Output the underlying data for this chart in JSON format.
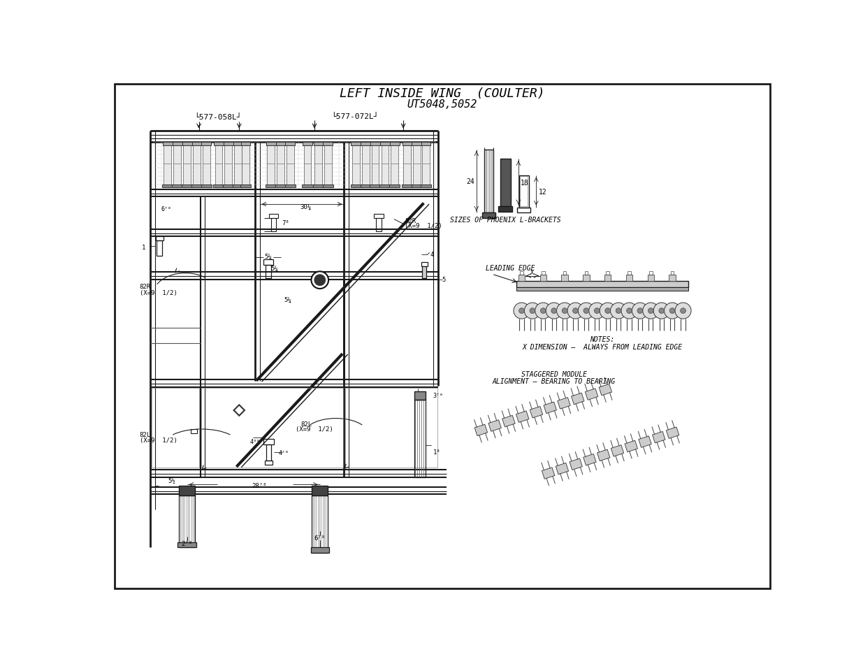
{
  "title_line1": "LEFT INSIDE WING  (COULTER)",
  "title_line2": "UT5048,5052",
  "bg_color": "#ffffff",
  "lc": "#1a1a1a",
  "glc": "#999999",
  "fig_width": 12.35,
  "fig_height": 9.54,
  "dpi": 100,
  "sizes_title": "SIZES OF PHOENIX L-BRACKETS",
  "leading_edge_label": "LEADING EDGE",
  "notes_line1": "NOTES:",
  "notes_line2": "X DIMENSION –  ALWAYS FROM LEADING EDGE",
  "staggered_title_line1": "STAGGERED MODULE",
  "staggered_title_line2": "ALIGNMENT – BEARING TO BEARING"
}
